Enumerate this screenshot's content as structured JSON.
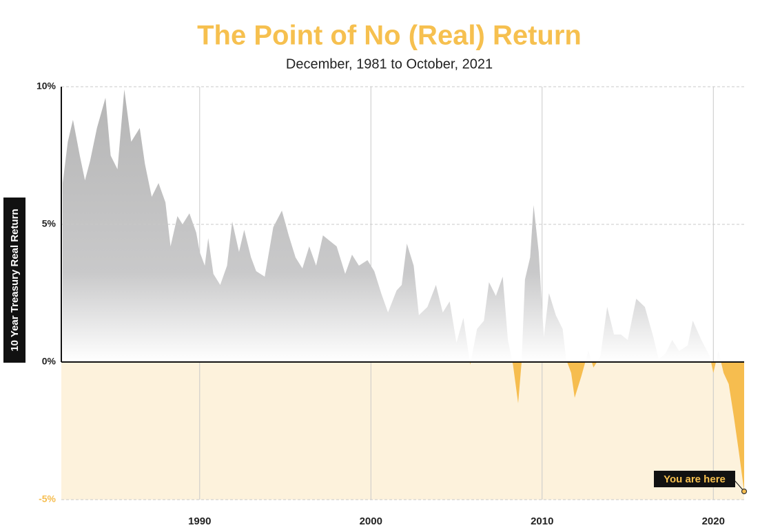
{
  "chart_data": {
    "type": "area",
    "title": "The Point of No (Real) Return",
    "subtitle": "December, 1981 to October, 2021",
    "y_label": "10 Year Treasury Real Return",
    "annotation": "You are here",
    "color_positive": "#b5b5b5",
    "color_negative": "#f6bd4f",
    "x": [
      1982.0,
      1982.3,
      1982.6,
      1983.0,
      1983.3,
      1983.6,
      1984.0,
      1984.5,
      1984.8,
      1985.2,
      1985.6,
      1986.0,
      1986.5,
      1986.8,
      1987.2,
      1987.6,
      1988.0,
      1988.3,
      1988.7,
      1989.0,
      1989.4,
      1989.8,
      1990.0,
      1990.3,
      1990.5,
      1990.8,
      1991.2,
      1991.6,
      1991.9,
      1992.3,
      1992.6,
      1993.0,
      1993.3,
      1993.8,
      1994.3,
      1994.8,
      1995.2,
      1995.6,
      1996.0,
      1996.4,
      1996.8,
      1997.2,
      1997.6,
      1998.0,
      1998.5,
      1998.9,
      1999.3,
      1999.8,
      2000.2,
      2000.6,
      2001.0,
      2001.5,
      2001.8,
      2002.1,
      2002.5,
      2002.8,
      2003.3,
      2003.8,
      2004.2,
      2004.6,
      2005.0,
      2005.4,
      2005.8,
      2006.2,
      2006.6,
      2006.9,
      2007.3,
      2007.7,
      2008.0,
      2008.3,
      2008.6,
      2008.8,
      2009.0,
      2009.3,
      2009.5,
      2009.8,
      2010.1,
      2010.4,
      2010.8,
      2011.2,
      2011.4,
      2011.7,
      2011.9,
      2012.3,
      2012.7,
      2013.0,
      2013.4,
      2013.8,
      2014.2,
      2014.6,
      2015.0,
      2015.5,
      2016.0,
      2016.5,
      2016.8,
      2017.2,
      2017.6,
      2018.0,
      2018.5,
      2018.8,
      2019.3,
      2019.8,
      2020.0,
      2020.3,
      2020.6,
      2020.9,
      2021.2,
      2021.5,
      2021.8
    ],
    "values": [
      6.5,
      8.0,
      8.8,
      7.5,
      6.6,
      7.3,
      8.5,
      9.6,
      7.5,
      7.0,
      9.9,
      8.0,
      8.5,
      7.2,
      6.0,
      6.5,
      5.8,
      4.2,
      5.3,
      5.0,
      5.4,
      4.7,
      4.0,
      3.5,
      4.5,
      3.2,
      2.8,
      3.5,
      5.1,
      4.0,
      4.8,
      3.8,
      3.3,
      3.1,
      4.9,
      5.5,
      4.6,
      3.8,
      3.4,
      4.2,
      3.5,
      4.6,
      4.4,
      4.2,
      3.2,
      3.9,
      3.5,
      3.7,
      3.3,
      2.5,
      1.8,
      2.6,
      2.8,
      4.3,
      3.5,
      1.7,
      2.0,
      2.8,
      1.8,
      2.2,
      0.7,
      1.6,
      -0.1,
      1.2,
      1.5,
      2.9,
      2.4,
      3.1,
      0.8,
      -0.1,
      -1.5,
      0.0,
      3.0,
      3.8,
      5.7,
      4.0,
      0.9,
      2.5,
      1.7,
      1.2,
      0.1,
      -0.4,
      -1.3,
      -0.5,
      0.4,
      -0.2,
      0.2,
      2.0,
      1.0,
      1.0,
      0.8,
      2.3,
      2.0,
      0.9,
      0.1,
      0.3,
      0.8,
      0.4,
      0.6,
      1.5,
      0.8,
      0.2,
      -0.4,
      0.4,
      -0.4,
      -0.8,
      -2.0,
      -3.3,
      -4.7
    ],
    "xlim": [
      1981.92,
      2021.8
    ],
    "ylim": [
      -5,
      10
    ],
    "xticks": [
      1990,
      2000,
      2010,
      2020
    ],
    "yticks": [
      {
        "value": -5,
        "label": "-5%"
      },
      {
        "value": 0,
        "label": "0%"
      },
      {
        "value": 5,
        "label": "5%"
      },
      {
        "value": 10,
        "label": "10%"
      }
    ],
    "grid": true
  }
}
